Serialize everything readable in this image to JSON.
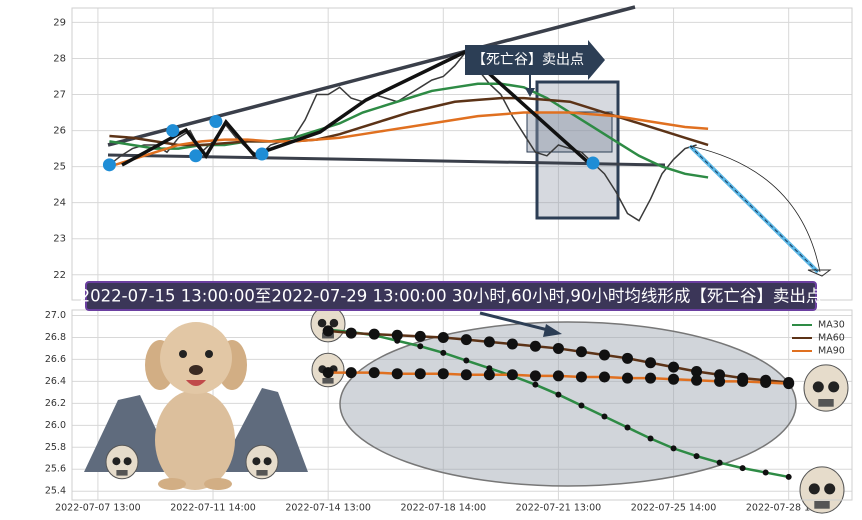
{
  "chart_data": [
    {
      "type": "line",
      "annotation": "【死亡谷】卖出点",
      "banner": "2022-07-15 13:00:00至2022-07-29 13:00:00 30小时,60小时,90小时均线形成【死亡谷】卖出点",
      "xlim": [
        -4.5,
        131
      ],
      "ylim": [
        21.3,
        29.4
      ],
      "yticks": [
        22,
        23,
        24,
        25,
        26,
        27,
        28,
        29
      ],
      "grid": true,
      "series": [
        {
          "color": "#3a3a3a",
          "x": [
            2,
            4,
            6,
            8,
            10,
            12,
            14,
            16,
            18,
            20,
            22,
            24,
            26,
            28,
            30,
            32,
            34,
            36,
            38,
            40,
            42,
            44,
            46,
            48,
            50,
            52,
            54,
            56,
            58,
            60,
            62,
            64,
            66,
            68,
            70,
            72,
            74,
            76,
            78,
            80,
            82,
            84,
            86,
            88,
            90,
            92,
            94,
            96,
            98,
            100,
            102,
            104
          ],
          "values": [
            25.05,
            25.3,
            25.5,
            25.6,
            25.6,
            25.4,
            25.8,
            26.0,
            25.4,
            25.7,
            26.2,
            25.8,
            25.5,
            25.3,
            25.6,
            25.7,
            25.8,
            26.3,
            27.0,
            27.0,
            27.2,
            26.9,
            26.8,
            27.0,
            26.9,
            26.8,
            27.0,
            27.2,
            27.4,
            27.5,
            27.8,
            28.2,
            27.7,
            27.3,
            27.0,
            26.4,
            25.9,
            25.4,
            25.3,
            25.6,
            25.5,
            25.4,
            25.1,
            24.8,
            24.3,
            23.7,
            23.5,
            24.1,
            24.8,
            25.2,
            25.5,
            25.6
          ]
        },
        {
          "color": "#2e8b45",
          "x": [
            2,
            6,
            10,
            14,
            18,
            22,
            26,
            30,
            34,
            38,
            42,
            46,
            50,
            54,
            58,
            62,
            66,
            70,
            74,
            78,
            82,
            86,
            90,
            94,
            98,
            102,
            106
          ],
          "values": [
            25.7,
            25.6,
            25.5,
            25.5,
            25.6,
            25.6,
            25.7,
            25.7,
            25.8,
            26.0,
            26.2,
            26.5,
            26.7,
            26.9,
            27.1,
            27.2,
            27.3,
            27.3,
            27.2,
            26.9,
            26.5,
            26.1,
            25.7,
            25.3,
            25.0,
            24.8,
            24.7
          ]
        },
        {
          "color": "#5c3317",
          "x": [
            2,
            6,
            10,
            14,
            18,
            22,
            26,
            30,
            34,
            38,
            42,
            46,
            50,
            54,
            58,
            62,
            66,
            70,
            74,
            78,
            82,
            86,
            90,
            94,
            98,
            102,
            106
          ],
          "values": [
            25.85,
            25.8,
            25.7,
            25.6,
            25.6,
            25.65,
            25.7,
            25.7,
            25.7,
            25.75,
            25.9,
            26.1,
            26.3,
            26.5,
            26.65,
            26.8,
            26.85,
            26.9,
            26.9,
            26.85,
            26.8,
            26.6,
            26.4,
            26.2,
            26.0,
            25.8,
            25.6
          ]
        },
        {
          "color": "#e07020",
          "x": [
            2,
            6,
            10,
            14,
            18,
            22,
            26,
            30,
            34,
            38,
            42,
            46,
            50,
            54,
            58,
            62,
            66,
            70,
            74,
            78,
            82,
            86,
            90,
            94,
            98,
            102,
            106
          ],
          "values": [
            25.0,
            25.2,
            25.4,
            25.6,
            25.7,
            25.75,
            25.75,
            25.7,
            25.7,
            25.75,
            25.8,
            25.9,
            26.0,
            26.1,
            26.2,
            26.3,
            26.4,
            26.45,
            26.5,
            26.5,
            26.5,
            26.45,
            26.4,
            26.3,
            26.2,
            26.1,
            26.05
          ]
        }
      ],
      "markers": {
        "color": "#1f8dd6",
        "x": [
          2,
          13,
          17,
          20.5,
          28.5,
          65,
          86
        ],
        "values": [
          25.05,
          26.0,
          25.3,
          26.25,
          25.35,
          28.15,
          25.1
        ]
      }
    },
    {
      "type": "line",
      "xlim": [
        -4.5,
        131
      ],
      "ylim": [
        25.32,
        27.05
      ],
      "yticks": [
        25.4,
        25.6,
        25.8,
        {
          "value": 26,
          "label": "26.0"
        },
        26.2,
        26.4,
        26.6,
        26.8,
        {
          "value": 27,
          "label": "27.0"
        }
      ],
      "xticks": [
        {
          "value": 0,
          "label": "2022-07-07 13:00"
        },
        {
          "value": 20,
          "label": "2022-07-11 14:00"
        },
        {
          "value": 40,
          "label": "2022-07-14 13:00"
        },
        {
          "value": 60,
          "label": "2022-07-18 14:00"
        },
        {
          "value": 80,
          "label": "2022-07-21 13:00"
        },
        {
          "value": 100,
          "label": "2022-07-25 14:00"
        },
        {
          "value": 120,
          "label": "2022-07-28 13:00"
        }
      ],
      "grid": true,
      "legend": "upper right",
      "x": [
        40,
        44,
        48,
        52,
        56,
        60,
        64,
        68,
        72,
        76,
        80,
        84,
        88,
        92,
        96,
        100,
        104,
        108,
        112,
        116,
        120
      ],
      "series": [
        {
          "name": "MA30",
          "color": "#2e8b45",
          "values": [
            26.87,
            26.85,
            26.82,
            26.77,
            26.72,
            26.66,
            26.59,
            26.52,
            26.45,
            26.37,
            26.28,
            26.18,
            26.08,
            25.98,
            25.88,
            25.79,
            25.72,
            25.66,
            25.61,
            25.57,
            25.53
          ]
        },
        {
          "name": "MA60",
          "color": "#5c3317",
          "values": [
            26.86,
            26.84,
            26.83,
            26.82,
            26.81,
            26.8,
            26.78,
            26.76,
            26.74,
            26.72,
            26.7,
            26.67,
            26.64,
            26.61,
            26.57,
            26.53,
            26.49,
            26.46,
            26.43,
            26.41,
            26.39
          ]
        },
        {
          "name": "MA90",
          "color": "#e07020",
          "values": [
            26.48,
            26.48,
            26.48,
            26.47,
            26.47,
            26.47,
            26.46,
            26.46,
            26.46,
            26.45,
            26.45,
            26.44,
            26.44,
            26.43,
            26.43,
            26.42,
            26.41,
            26.4,
            26.4,
            26.39,
            26.38
          ]
        }
      ]
    }
  ]
}
